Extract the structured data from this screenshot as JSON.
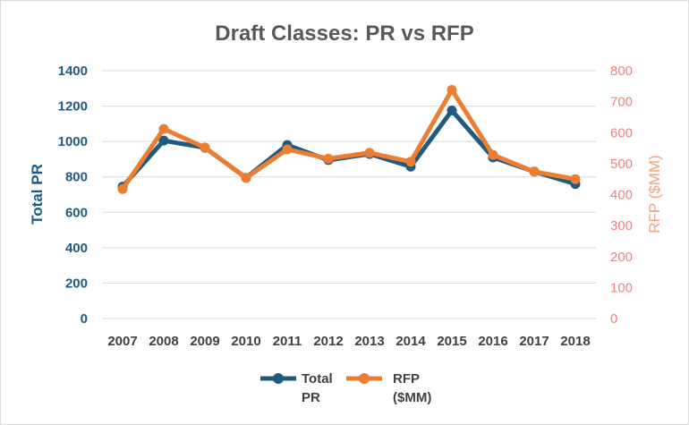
{
  "chart_data": {
    "type": "line",
    "title": "Draft Classes: PR vs RFP",
    "categories": [
      "2007",
      "2008",
      "2009",
      "2010",
      "2011",
      "2012",
      "2013",
      "2014",
      "2015",
      "2016",
      "2017",
      "2018"
    ],
    "y_left": {
      "label": "Total PR",
      "ylim": [
        0,
        1400
      ],
      "ticks": [
        "0",
        "200",
        "400",
        "600",
        "800",
        "1000",
        "1200",
        "1400"
      ],
      "color": "#1f5a80"
    },
    "y_right": {
      "label": "RFP ($MM)",
      "ylim": [
        0,
        800
      ],
      "ticks": [
        "0",
        "100",
        "200",
        "300",
        "400",
        "500",
        "600",
        "700",
        "800"
      ],
      "color": "#f08080"
    },
    "grid": true,
    "legend_position": "bottom",
    "series": [
      {
        "name": "Total PR",
        "axis": "left",
        "color": "#1f5a80",
        "values": [
          745,
          1005,
          965,
          795,
          980,
          895,
          930,
          858,
          1175,
          910,
          830,
          760
        ]
      },
      {
        "name": "RFP ($MM)",
        "axis": "right",
        "color": "#ed7d31",
        "values": [
          418,
          612,
          552,
          454,
          546,
          516,
          535,
          506,
          738,
          528,
          474,
          450
        ]
      }
    ],
    "legend": [
      {
        "line1": "Total",
        "line2": "PR"
      },
      {
        "line1": "RFP",
        "line2": "($MM)"
      }
    ]
  }
}
